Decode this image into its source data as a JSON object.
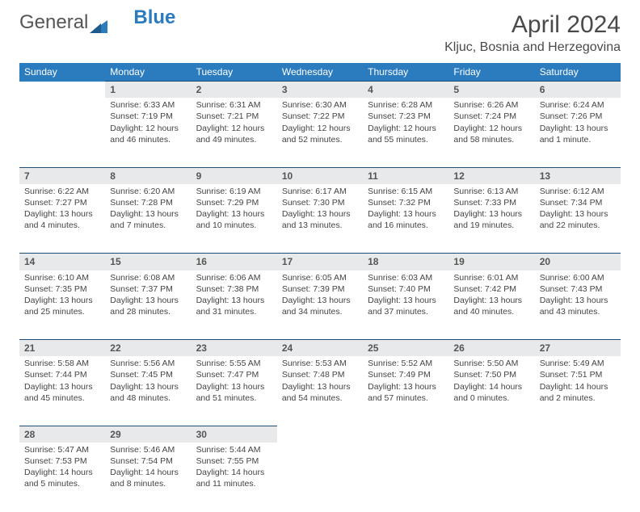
{
  "logo": {
    "text1": "General",
    "text2": "Blue",
    "shape_color": "#2b7bbf"
  },
  "title": "April 2024",
  "location": "Kljuc, Bosnia and Herzegovina",
  "header_bg": "#2b7bbf",
  "daynum_bg": "#e8e9ea",
  "border_color": "#1f4e78",
  "weekdays": [
    "Sunday",
    "Monday",
    "Tuesday",
    "Wednesday",
    "Thursday",
    "Friday",
    "Saturday"
  ],
  "weeks": [
    [
      null,
      {
        "n": "1",
        "sr": "6:33 AM",
        "ss": "7:19 PM",
        "dl": "12 hours and 46 minutes."
      },
      {
        "n": "2",
        "sr": "6:31 AM",
        "ss": "7:21 PM",
        "dl": "12 hours and 49 minutes."
      },
      {
        "n": "3",
        "sr": "6:30 AM",
        "ss": "7:22 PM",
        "dl": "12 hours and 52 minutes."
      },
      {
        "n": "4",
        "sr": "6:28 AM",
        "ss": "7:23 PM",
        "dl": "12 hours and 55 minutes."
      },
      {
        "n": "5",
        "sr": "6:26 AM",
        "ss": "7:24 PM",
        "dl": "12 hours and 58 minutes."
      },
      {
        "n": "6",
        "sr": "6:24 AM",
        "ss": "7:26 PM",
        "dl": "13 hours and 1 minute."
      }
    ],
    [
      {
        "n": "7",
        "sr": "6:22 AM",
        "ss": "7:27 PM",
        "dl": "13 hours and 4 minutes."
      },
      {
        "n": "8",
        "sr": "6:20 AM",
        "ss": "7:28 PM",
        "dl": "13 hours and 7 minutes."
      },
      {
        "n": "9",
        "sr": "6:19 AM",
        "ss": "7:29 PM",
        "dl": "13 hours and 10 minutes."
      },
      {
        "n": "10",
        "sr": "6:17 AM",
        "ss": "7:30 PM",
        "dl": "13 hours and 13 minutes."
      },
      {
        "n": "11",
        "sr": "6:15 AM",
        "ss": "7:32 PM",
        "dl": "13 hours and 16 minutes."
      },
      {
        "n": "12",
        "sr": "6:13 AM",
        "ss": "7:33 PM",
        "dl": "13 hours and 19 minutes."
      },
      {
        "n": "13",
        "sr": "6:12 AM",
        "ss": "7:34 PM",
        "dl": "13 hours and 22 minutes."
      }
    ],
    [
      {
        "n": "14",
        "sr": "6:10 AM",
        "ss": "7:35 PM",
        "dl": "13 hours and 25 minutes."
      },
      {
        "n": "15",
        "sr": "6:08 AM",
        "ss": "7:37 PM",
        "dl": "13 hours and 28 minutes."
      },
      {
        "n": "16",
        "sr": "6:06 AM",
        "ss": "7:38 PM",
        "dl": "13 hours and 31 minutes."
      },
      {
        "n": "17",
        "sr": "6:05 AM",
        "ss": "7:39 PM",
        "dl": "13 hours and 34 minutes."
      },
      {
        "n": "18",
        "sr": "6:03 AM",
        "ss": "7:40 PM",
        "dl": "13 hours and 37 minutes."
      },
      {
        "n": "19",
        "sr": "6:01 AM",
        "ss": "7:42 PM",
        "dl": "13 hours and 40 minutes."
      },
      {
        "n": "20",
        "sr": "6:00 AM",
        "ss": "7:43 PM",
        "dl": "13 hours and 43 minutes."
      }
    ],
    [
      {
        "n": "21",
        "sr": "5:58 AM",
        "ss": "7:44 PM",
        "dl": "13 hours and 45 minutes."
      },
      {
        "n": "22",
        "sr": "5:56 AM",
        "ss": "7:45 PM",
        "dl": "13 hours and 48 minutes."
      },
      {
        "n": "23",
        "sr": "5:55 AM",
        "ss": "7:47 PM",
        "dl": "13 hours and 51 minutes."
      },
      {
        "n": "24",
        "sr": "5:53 AM",
        "ss": "7:48 PM",
        "dl": "13 hours and 54 minutes."
      },
      {
        "n": "25",
        "sr": "5:52 AM",
        "ss": "7:49 PM",
        "dl": "13 hours and 57 minutes."
      },
      {
        "n": "26",
        "sr": "5:50 AM",
        "ss": "7:50 PM",
        "dl": "14 hours and 0 minutes."
      },
      {
        "n": "27",
        "sr": "5:49 AM",
        "ss": "7:51 PM",
        "dl": "14 hours and 2 minutes."
      }
    ],
    [
      {
        "n": "28",
        "sr": "5:47 AM",
        "ss": "7:53 PM",
        "dl": "14 hours and 5 minutes."
      },
      {
        "n": "29",
        "sr": "5:46 AM",
        "ss": "7:54 PM",
        "dl": "14 hours and 8 minutes."
      },
      {
        "n": "30",
        "sr": "5:44 AM",
        "ss": "7:55 PM",
        "dl": "14 hours and 11 minutes."
      },
      null,
      null,
      null,
      null
    ]
  ],
  "labels": {
    "sunrise": "Sunrise: ",
    "sunset": "Sunset: ",
    "daylight": "Daylight: "
  }
}
